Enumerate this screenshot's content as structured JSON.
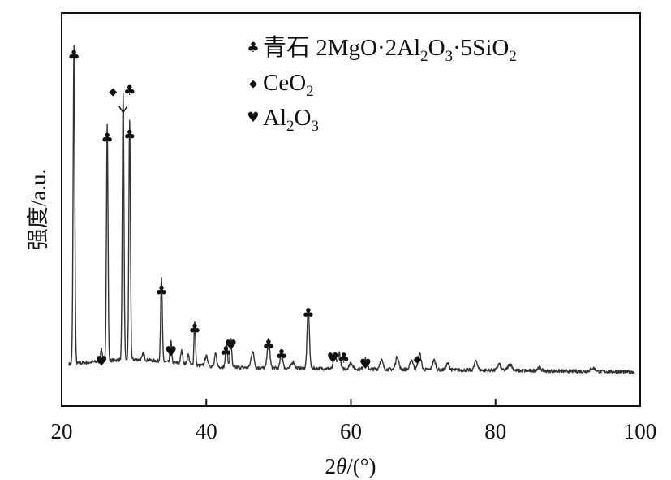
{
  "chart_data": {
    "type": "line",
    "title": "",
    "xlabel_parts": [
      "2",
      "θ",
      "/(°)"
    ],
    "ylabel": "强度/a.u.",
    "xlim": [
      20,
      100
    ],
    "x_ticks": [
      "20",
      "40",
      "60",
      "80",
      "100"
    ],
    "y_ticks_shown": false,
    "grid": false,
    "legend_position": "top-right",
    "legend": [
      {
        "marker": "club",
        "marker_glyph": "♣",
        "parts": [
          {
            "t": "青石 2MgO·2Al"
          },
          {
            "t": "2",
            "sub": true
          },
          {
            "t": "O"
          },
          {
            "t": "3",
            "sub": true
          },
          {
            "t": "·5SiO"
          },
          {
            "t": "2",
            "sub": true
          }
        ]
      },
      {
        "marker": "diamond",
        "marker_glyph": "◆",
        "parts": [
          {
            "t": "CeO"
          },
          {
            "t": "2",
            "sub": true
          }
        ]
      },
      {
        "marker": "heart",
        "marker_glyph": "♥",
        "parts": [
          {
            "t": "Al"
          },
          {
            "t": "2",
            "sub": true
          },
          {
            "t": "O"
          },
          {
            "t": "3",
            "sub": true
          }
        ]
      }
    ],
    "series": [
      {
        "baseline": 6,
        "peaks": [
          {
            "x": 21.7,
            "h": 100,
            "w": 0.16
          },
          {
            "x": 25.5,
            "h": 4,
            "w": 0.15
          },
          {
            "x": 26.3,
            "h": 74,
            "w": 0.15
          },
          {
            "x": 28.5,
            "h": 84,
            "w": 0.16
          },
          {
            "x": 29.4,
            "h": 75,
            "w": 0.15
          },
          {
            "x": 31.3,
            "h": 2,
            "w": 0.2
          },
          {
            "x": 33.8,
            "h": 26,
            "w": 0.16
          },
          {
            "x": 35.1,
            "h": 7,
            "w": 0.14
          },
          {
            "x": 36.6,
            "h": 4,
            "w": 0.2
          },
          {
            "x": 37.5,
            "h": 3,
            "w": 0.2
          },
          {
            "x": 38.4,
            "h": 14,
            "w": 0.14
          },
          {
            "x": 40.0,
            "h": 3,
            "w": 0.3
          },
          {
            "x": 41.3,
            "h": 4,
            "w": 0.2
          },
          {
            "x": 42.8,
            "h": 7,
            "w": 0.2
          },
          {
            "x": 43.4,
            "h": 9,
            "w": 0.16
          },
          {
            "x": 46.4,
            "h": 5,
            "w": 0.3
          },
          {
            "x": 48.6,
            "h": 9,
            "w": 0.25
          },
          {
            "x": 50.4,
            "h": 6,
            "w": 0.22
          },
          {
            "x": 52.0,
            "h": 2,
            "w": 0.3
          },
          {
            "x": 54.1,
            "h": 19,
            "w": 0.22
          },
          {
            "x": 57.8,
            "h": 5,
            "w": 0.25
          },
          {
            "x": 58.4,
            "h": 5,
            "w": 0.22
          },
          {
            "x": 60.0,
            "h": 2,
            "w": 0.3
          },
          {
            "x": 62.0,
            "h": 3,
            "w": 0.3
          },
          {
            "x": 64.2,
            "h": 3,
            "w": 0.3
          },
          {
            "x": 66.4,
            "h": 4,
            "w": 0.3
          },
          {
            "x": 68.4,
            "h": 3,
            "w": 0.3
          },
          {
            "x": 69.5,
            "h": 5,
            "w": 0.3
          },
          {
            "x": 71.5,
            "h": 3,
            "w": 0.3
          },
          {
            "x": 73.4,
            "h": 2,
            "w": 0.3
          },
          {
            "x": 77.3,
            "h": 3,
            "w": 0.3
          },
          {
            "x": 80.5,
            "h": 2,
            "w": 0.3
          },
          {
            "x": 82.0,
            "h": 2,
            "w": 0.4
          },
          {
            "x": 86.0,
            "h": 1,
            "w": 0.4
          },
          {
            "x": 93.5,
            "h": 1,
            "w": 0.5
          }
        ]
      }
    ],
    "annotations": [
      {
        "x": 21.7,
        "marker": "club",
        "glyph": "♣",
        "h": 100
      },
      {
        "x": 25.5,
        "marker": "heart",
        "glyph": "♥",
        "h": 4
      },
      {
        "x": 26.3,
        "marker": "club",
        "glyph": "♣",
        "h": 74
      },
      {
        "x": 27.1,
        "marker": "diamond",
        "glyph": "◆",
        "h": 89
      },
      {
        "x": 29.4,
        "marker": "club",
        "glyph": "♣",
        "h": 89
      },
      {
        "x": 29.4,
        "marker": "club",
        "glyph": "♣",
        "h": 75
      },
      {
        "x": 33.8,
        "marker": "club",
        "glyph": "♣",
        "h": 26
      },
      {
        "x": 35.1,
        "marker": "heart",
        "glyph": "♥",
        "h": 7
      },
      {
        "x": 38.4,
        "marker": "club",
        "glyph": "♣",
        "h": 14
      },
      {
        "x": 42.7,
        "marker": "club",
        "glyph": "♣",
        "h": 7
      },
      {
        "x": 43.4,
        "marker": "heart",
        "glyph": "♥",
        "h": 9
      },
      {
        "x": 48.6,
        "marker": "club",
        "glyph": "♣",
        "h": 9
      },
      {
        "x": 50.4,
        "marker": "club",
        "glyph": "♣",
        "h": 6
      },
      {
        "x": 54.1,
        "marker": "club",
        "glyph": "♣",
        "h": 19
      },
      {
        "x": 57.5,
        "marker": "heart",
        "glyph": "♥",
        "h": 5
      },
      {
        "x": 59.0,
        "marker": "club",
        "glyph": "♣",
        "h": 5
      },
      {
        "x": 62.0,
        "marker": "heart",
        "glyph": "♥",
        "h": 3
      },
      {
        "x": 69.2,
        "marker": "diamond",
        "glyph": "◆",
        "h": 5
      }
    ]
  }
}
